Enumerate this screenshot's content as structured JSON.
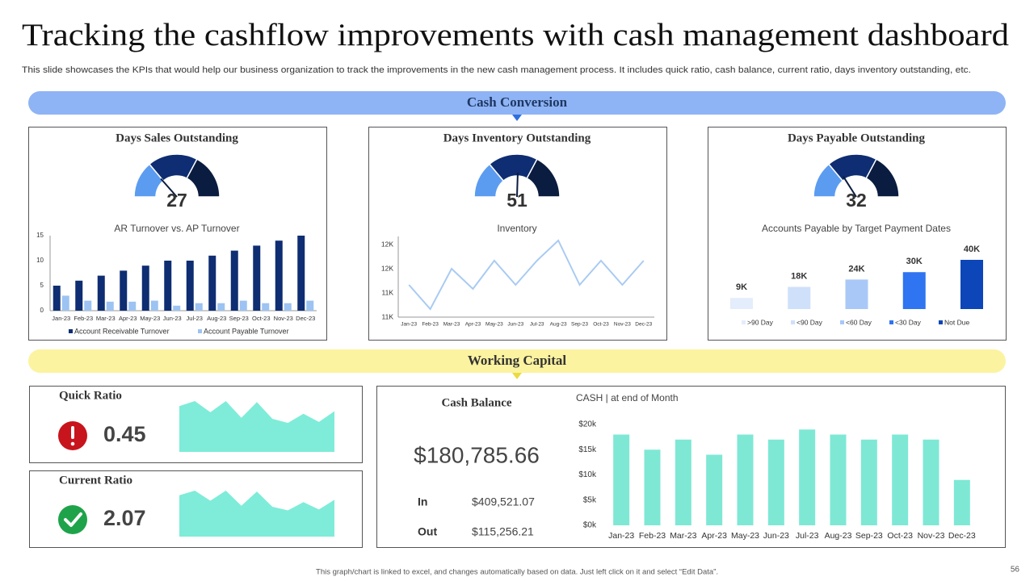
{
  "header": {
    "title": "Tracking the cashflow improvements with cash management dashboard",
    "subtitle": "This slide showcases the KPIs that would help our business organization to track the improvements in the new cash management process. It includes quick ratio, cash balance, current ratio, days inventory outstanding, etc."
  },
  "sections": [
    "Cash Conversion",
    "Working Capital"
  ],
  "chart_data": [
    {
      "type": "gauge",
      "title": "Days Sales Outstanding",
      "value": 27,
      "ylim": [
        0,
        100
      ],
      "colors": [
        "#5b9cf0",
        "#0e2d72",
        "#0a1c3f"
      ]
    },
    {
      "type": "gauge",
      "title": "Days Inventory Outstanding",
      "value": 51,
      "ylim": [
        0,
        100
      ],
      "colors": [
        "#5b9cf0",
        "#0e2d72",
        "#0a1c3f"
      ]
    },
    {
      "type": "gauge",
      "title": "Days Payable Outstanding",
      "value": 32,
      "ylim": [
        0,
        100
      ],
      "colors": [
        "#5b9cf0",
        "#0e2d72",
        "#0a1c3f"
      ]
    },
    {
      "type": "bar",
      "title": "AR Turnover  vs.  AP Turnover",
      "categories": [
        "Jan-23",
        "Feb-23",
        "Mar-23",
        "Apr-23",
        "May-23",
        "Jun-23",
        "Jul-23",
        "Aug-23",
        "Sep-23",
        "Oct-23",
        "Nov-23",
        "Dec-23"
      ],
      "series": [
        {
          "name": "Account Receivable Turnover",
          "color": "#0e2d72",
          "values": [
            5,
            6,
            7,
            8,
            9,
            10,
            10,
            11,
            12,
            13,
            14,
            15
          ]
        },
        {
          "name": "Account Payable Turnover",
          "color": "#9cc3f2",
          "values": [
            3,
            2,
            1.8,
            1.8,
            2,
            1,
            1.5,
            1.5,
            2,
            1.5,
            1.5,
            2
          ]
        }
      ],
      "ylim": [
        0,
        15
      ],
      "yticks": [
        0,
        5,
        10,
        15
      ]
    },
    {
      "type": "line",
      "title": "Inventory",
      "categories": [
        "Jan-23",
        "Feb-23",
        "Mar-23",
        "Apr-23",
        "May-23",
        "Jun-23",
        "Jul-23",
        "Aug-23",
        "Sep-23",
        "Oct-23",
        "Nov-23",
        "Dec-23"
      ],
      "values": [
        11400,
        11100,
        11600,
        11350,
        11700,
        11400,
        11700,
        11950,
        11400,
        11700,
        11400,
        11700
      ],
      "color": "#a9cbf3",
      "ylim": [
        11000,
        12000
      ],
      "yticks": [
        {
          "value": 11000,
          "label": "11K"
        },
        {
          "value": 11300,
          "label": "11K"
        },
        {
          "value": 11600,
          "label": "12K"
        },
        {
          "value": 11900,
          "label": "12K"
        }
      ]
    },
    {
      "type": "bar",
      "title": "Accounts Payable by Target Payment Dates",
      "categories": [
        ">90 Day",
        "<90 Day",
        "<60 Day",
        "<30 Day",
        "Not Due"
      ],
      "values": [
        9000,
        18000,
        24000,
        30000,
        40000
      ],
      "value_labels": [
        "9K",
        "18K",
        "24K",
        "30K",
        "40K"
      ],
      "colors": [
        "#e3edfc",
        "#cfe0fb",
        "#a9c8f7",
        "#2f74f0",
        "#0c46b8"
      ]
    },
    {
      "type": "area",
      "title": "Quick Ratio",
      "value": 0.45,
      "values": [
        9,
        10,
        7.8,
        10,
        6.7,
        9.8,
        6.5,
        5.7,
        7.5,
        5.9,
        8
      ],
      "ylim": [
        0,
        10
      ],
      "color": "#7eecd8"
    },
    {
      "type": "area",
      "title": "Current Ratio",
      "value": 2.07,
      "values": [
        9,
        10,
        7.8,
        10,
        6.7,
        9.8,
        6.5,
        5.7,
        7.5,
        5.9,
        8
      ],
      "ylim": [
        0,
        10
      ],
      "color": "#7eecd8"
    },
    {
      "type": "bar",
      "title": "CASH | at end of Month",
      "categories": [
        "Jan-23",
        "Feb-23",
        "Mar-23",
        "Apr-23",
        "May-23",
        "Jun-23",
        "Jul-23",
        "Aug-23",
        "Sep-23",
        "Oct-23",
        "Nov-23",
        "Dec-23"
      ],
      "values": [
        18000,
        15000,
        17000,
        14000,
        18000,
        17000,
        19000,
        18000,
        17000,
        18000,
        17000,
        9000
      ],
      "color": "#7ee8d5",
      "ylim": [
        0,
        20000
      ],
      "yticks": [
        {
          "value": 0,
          "label": "$0k"
        },
        {
          "value": 5000,
          "label": "$5k"
        },
        {
          "value": 10000,
          "label": "$10k"
        },
        {
          "value": 15000,
          "label": "$15k"
        },
        {
          "value": 20000,
          "label": "$20k"
        }
      ]
    }
  ],
  "cash_balance": {
    "title": "Cash Balance",
    "amount": "$180,785.66",
    "in_label": "In",
    "in": "$409,521.07",
    "out_label": "Out",
    "out": "$115,256.21"
  },
  "footer": {
    "note": "This graph/chart is linked to excel, and changes automatically based on data. Just left click on it and select “Edit Data”.",
    "page": 56
  }
}
